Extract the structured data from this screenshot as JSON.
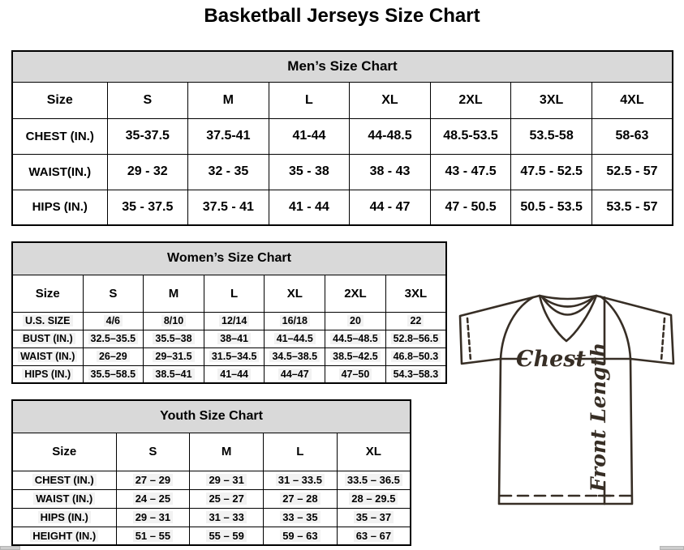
{
  "page_title": "Basketball Jerseys Size Chart",
  "mens": {
    "title": "Men’s Size Chart",
    "columns": [
      "Size",
      "S",
      "M",
      "L",
      "XL",
      "2XL",
      "3XL",
      "4XL"
    ],
    "rows": [
      {
        "label": "CHEST (IN.)",
        "values": [
          "35-37.5",
          "37.5-41",
          "41-44",
          "44-48.5",
          "48.5-53.5",
          "53.5-58",
          "58-63"
        ]
      },
      {
        "label": "WAIST(IN.)",
        "values": [
          "29 - 32",
          "32 - 35",
          "35 - 38",
          "38 - 43",
          "43 - 47.5",
          "47.5 - 52.5",
          "52.5 - 57"
        ]
      },
      {
        "label": "HIPS (IN.)",
        "values": [
          "35 - 37.5",
          "37.5 - 41",
          "41 - 44",
          "44 - 47",
          "47 - 50.5",
          "50.5 - 53.5",
          "53.5 - 57"
        ]
      }
    ]
  },
  "womens": {
    "title": "Women’s Size Chart",
    "columns": [
      "Size",
      "S",
      "M",
      "L",
      "XL",
      "2XL",
      "3XL"
    ],
    "rows": [
      {
        "label": "U.S. SIZE",
        "values": [
          "4/6",
          "8/10",
          "12/14",
          "16/18",
          "20",
          "22"
        ]
      },
      {
        "label": "BUST (IN.)",
        "values": [
          "32.5–35.5",
          "35.5–38",
          "38–41",
          "41–44.5",
          "44.5–48.5",
          "52.8–56.5"
        ]
      },
      {
        "label": "WAIST (IN.)",
        "values": [
          "26–29",
          "29–31.5",
          "31.5–34.5",
          "34.5–38.5",
          "38.5–42.5",
          "46.8–50.3"
        ]
      },
      {
        "label": "HIPS (IN.)",
        "values": [
          "35.5–58.5",
          "38.5–41",
          "41–44",
          "44–47",
          "47–50",
          "54.3–58.3"
        ]
      }
    ]
  },
  "youth": {
    "title": "Youth Size Chart",
    "columns": [
      "Size",
      "S",
      "M",
      "L",
      "XL"
    ],
    "rows": [
      {
        "label": "CHEST (IN.)",
        "values": [
          "27 – 29",
          "29 – 31",
          "31 – 33.5",
          "33.5 – 36.5"
        ]
      },
      {
        "label": "WAIST (IN.)",
        "values": [
          "24 – 25",
          "25 – 27",
          "27 – 28",
          "28 – 29.5"
        ]
      },
      {
        "label": "HIPS (IN.)",
        "values": [
          "29 – 31",
          "31 – 33",
          "33 – 35",
          "35 – 37"
        ]
      },
      {
        "label": "HEIGHT (IN.)",
        "values": [
          "51 – 55",
          "55 – 59",
          "59 – 63",
          "63 – 67"
        ]
      }
    ]
  },
  "diagram": {
    "chest_label": "Chest",
    "front_length_label": "Front Length"
  },
  "colors": {
    "table_header_bg": "#d9d9d9",
    "table_border": "#000000",
    "diagram_ink": "#372e25",
    "scrollbar_gray": "#cdcdcd"
  }
}
